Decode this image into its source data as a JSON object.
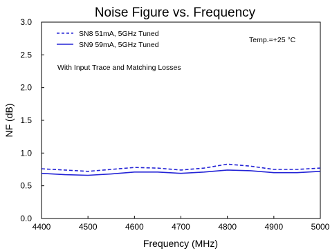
{
  "chart_data": {
    "type": "line",
    "title": "Noise Figure vs. Frequency",
    "xlabel": "Frequency (MHz)",
    "ylabel": "NF (dB)",
    "xlim": [
      4400,
      5000
    ],
    "ylim": [
      0.0,
      3.0
    ],
    "x_ticks": [
      4400,
      4500,
      4600,
      4700,
      4800,
      4900,
      5000
    ],
    "y_ticks": [
      0.0,
      0.5,
      1.0,
      1.5,
      2.0,
      2.5,
      3.0
    ],
    "x_tick_labels": [
      "4400",
      "4500",
      "4600",
      "4700",
      "4800",
      "4900",
      "5000"
    ],
    "y_tick_labels": [
      "0.0",
      "0.5",
      "1.0",
      "1.5",
      "2.0",
      "2.5",
      "3.0"
    ],
    "grid": false,
    "legend_position": "top-left",
    "annotations": [
      "Temp.=+25 °C",
      "With Input Trace and Matching Losses"
    ],
    "series": [
      {
        "name": "SN8 51mA, 5GHz Tuned",
        "style": "dashed",
        "color": "#2323d6",
        "x": [
          4400,
          4450,
          4500,
          4550,
          4600,
          4650,
          4700,
          4750,
          4800,
          4850,
          4900,
          4950,
          5000
        ],
        "y": [
          0.76,
          0.74,
          0.72,
          0.75,
          0.78,
          0.77,
          0.74,
          0.77,
          0.83,
          0.8,
          0.75,
          0.75,
          0.77
        ]
      },
      {
        "name": "SN9 59mA, 5GHz Tuned",
        "style": "solid",
        "color": "#2323d6",
        "x": [
          4400,
          4450,
          4500,
          4550,
          4600,
          4650,
          4700,
          4750,
          4800,
          4850,
          4900,
          4950,
          5000
        ],
        "y": [
          0.69,
          0.67,
          0.66,
          0.68,
          0.71,
          0.71,
          0.69,
          0.71,
          0.74,
          0.73,
          0.7,
          0.7,
          0.72
        ]
      }
    ]
  }
}
